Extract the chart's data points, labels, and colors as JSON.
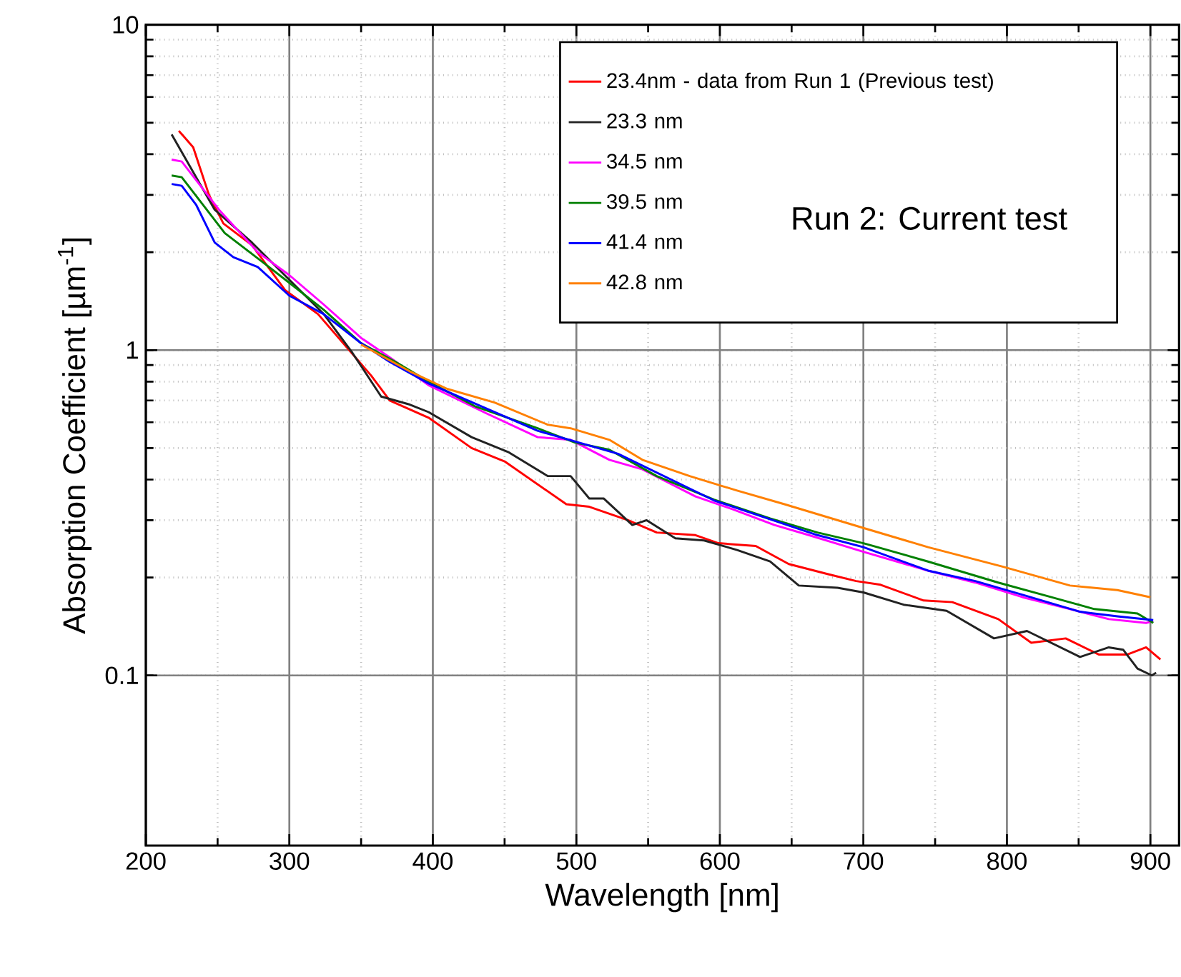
{
  "chart_data": {
    "type": "line",
    "xlabel": "Wavelength [nm]",
    "ylabel": "Absorption Coefficient [µm$^{-1}$]",
    "xlim": [
      200,
      920
    ],
    "ylim": [
      0.03,
      10
    ],
    "log": "y",
    "xticks": [
      200,
      300,
      400,
      500,
      600,
      700,
      800,
      900
    ],
    "yticks": [
      0.1,
      1,
      10
    ],
    "grid": true,
    "legend": "top right",
    "line_style": "solid",
    "annotations": [
      "Run 2: Current test"
    ],
    "series": [
      {
        "name": "23.4nm  - data from Run 1 (Previous test)",
        "color": "#ff0000",
        "x": [
          223,
          233,
          244,
          254,
          274,
          297,
          320,
          340,
          357,
          370,
          397,
          427,
          450,
          493,
          509,
          536,
          556,
          583,
          599,
          625,
          648,
          675,
          695,
          712,
          742,
          762,
          794,
          817,
          841,
          864,
          884,
          897,
          907
        ],
        "values": [
          4.72,
          4.2,
          3.0,
          2.45,
          2.1,
          1.53,
          1.29,
          1.02,
          0.835,
          0.7,
          0.62,
          0.5,
          0.455,
          0.336,
          0.33,
          0.3,
          0.275,
          0.27,
          0.255,
          0.25,
          0.22,
          0.205,
          0.195,
          0.19,
          0.17,
          0.168,
          0.149,
          0.126,
          0.13,
          0.116,
          0.116,
          0.122,
          0.112
        ]
      },
      {
        "name": "23.3 nm",
        "color": "#222222",
        "x": [
          218,
          248,
          274,
          304,
          324,
          344,
          364,
          384,
          397,
          427,
          453,
          480,
          496,
          509,
          519,
          539,
          549,
          569,
          589,
          612,
          635,
          655,
          682,
          700,
          728,
          758,
          791,
          814,
          851,
          871,
          881,
          891,
          901,
          904
        ],
        "values": [
          4.6,
          2.7,
          2.14,
          1.58,
          1.29,
          0.98,
          0.72,
          0.68,
          0.645,
          0.54,
          0.485,
          0.41,
          0.41,
          0.35,
          0.35,
          0.29,
          0.3,
          0.264,
          0.26,
          0.243,
          0.224,
          0.189,
          0.186,
          0.18,
          0.165,
          0.158,
          0.13,
          0.137,
          0.114,
          0.122,
          0.12,
          0.105,
          0.1,
          0.102
        ]
      },
      {
        "name": "34.5 nm",
        "color": "#ff00ff",
        "x": [
          218,
          225,
          251,
          278,
          300,
          324,
          350,
          370,
          397,
          437,
          473,
          496,
          523,
          546,
          583,
          609,
          638,
          662,
          700,
          745,
          778,
          811,
          844,
          871,
          897,
          902
        ],
        "values": [
          3.85,
          3.8,
          2.7,
          2.0,
          1.7,
          1.38,
          1.09,
          0.95,
          0.78,
          0.64,
          0.54,
          0.53,
          0.46,
          0.43,
          0.355,
          0.324,
          0.29,
          0.27,
          0.24,
          0.21,
          0.193,
          0.174,
          0.16,
          0.149,
          0.145,
          0.147
        ]
      },
      {
        "name": "39.5 nm",
        "color": "#008000",
        "x": [
          218,
          225,
          255,
          281,
          300,
          324,
          350,
          374,
          397,
          430,
          473,
          499,
          523,
          556,
          596,
          635,
          668,
          700,
          745,
          794,
          831,
          861,
          891,
          902
        ],
        "values": [
          3.44,
          3.4,
          2.29,
          1.87,
          1.61,
          1.33,
          1.05,
          0.92,
          0.8,
          0.67,
          0.575,
          0.52,
          0.494,
          0.41,
          0.347,
          0.304,
          0.275,
          0.255,
          0.224,
          0.193,
          0.174,
          0.16,
          0.155,
          0.145
        ]
      },
      {
        "name": "41.4 nm",
        "color": "#0000ff",
        "x": [
          218,
          225,
          235,
          248,
          261,
          278,
          300,
          324,
          350,
          370,
          397,
          473,
          529,
          596,
          668,
          700,
          745,
          778,
          811,
          851,
          877,
          902
        ],
        "values": [
          3.24,
          3.2,
          2.8,
          2.14,
          1.93,
          1.8,
          1.47,
          1.29,
          1.05,
          0.92,
          0.79,
          0.565,
          0.48,
          0.345,
          0.27,
          0.248,
          0.21,
          0.195,
          0.177,
          0.157,
          0.152,
          0.148
        ]
      },
      {
        "name": "42.8 nm",
        "color": "#ff8000",
        "x": [
          350,
          384,
          410,
          443,
          480,
          496,
          523,
          546,
          579,
          612,
          645,
          700,
          745,
          797,
          844,
          877,
          900
        ],
        "values": [
          1.04,
          0.86,
          0.76,
          0.69,
          0.59,
          0.575,
          0.53,
          0.46,
          0.41,
          0.37,
          0.336,
          0.284,
          0.248,
          0.216,
          0.189,
          0.183,
          0.174
        ]
      }
    ]
  }
}
